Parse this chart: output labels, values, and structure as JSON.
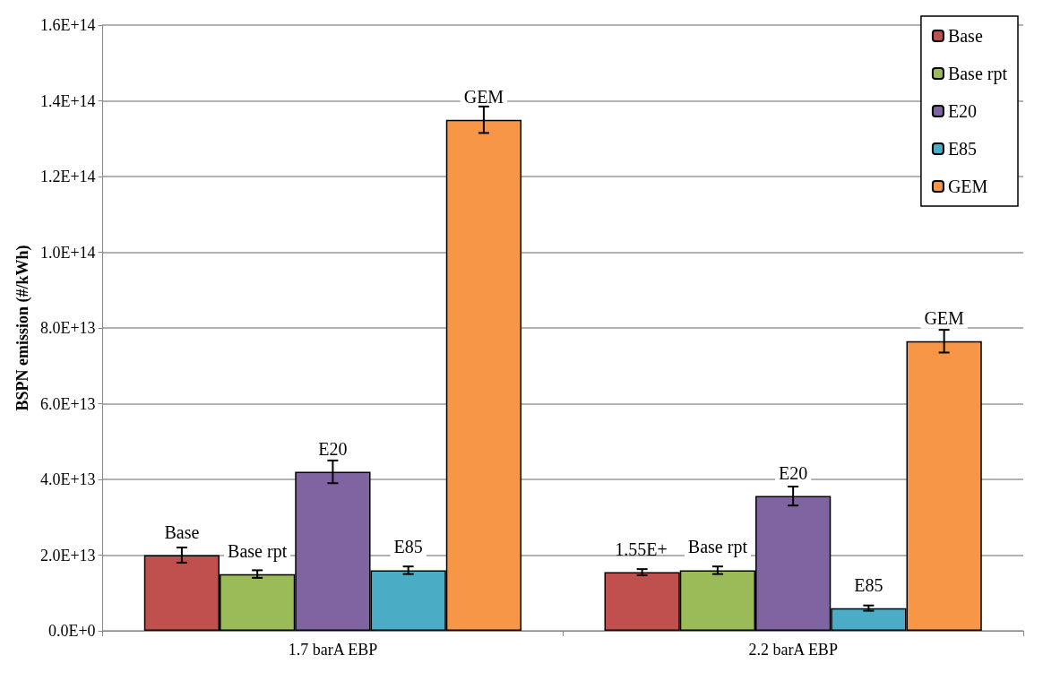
{
  "chart_data": {
    "type": "bar",
    "ylabel": "BSPN emission (#/kWh)",
    "categories": [
      "1.7 barA EBP",
      "2.2 barA EBP"
    ],
    "series": [
      {
        "name": "Base",
        "color": "#c0504d",
        "values": [
          20000000000000.0,
          15500000000000.0
        ],
        "errors": [
          2000000000000.0,
          800000000000.0
        ],
        "value_labels": [
          "Base",
          null
        ]
      },
      {
        "name": "Base rpt",
        "color": "#9bbb59",
        "values": [
          15000000000000.0,
          16000000000000.0
        ],
        "errors": [
          1000000000000.0,
          1000000000000.0
        ],
        "value_labels": [
          "Base rpt",
          "Base rpt"
        ]
      },
      {
        "name": "E20",
        "color": "#8064a2",
        "values": [
          42000000000000.0,
          35600000000000.0
        ],
        "errors": [
          3000000000000.0,
          2500000000000.0
        ],
        "value_labels": [
          "E20",
          "E20"
        ]
      },
      {
        "name": "E85",
        "color": "#4bacc6",
        "values": [
          16000000000000.0,
          6000000000000.0
        ],
        "errors": [
          1000000000000.0,
          700000000000.0
        ],
        "value_labels": [
          "E85",
          "E85"
        ]
      },
      {
        "name": "GEM",
        "color": "#f79646",
        "values": [
          135000000000000.0,
          76500000000000.0
        ],
        "errors": [
          3500000000000.0,
          3000000000000.0
        ],
        "value_labels": [
          "GEM",
          "GEM"
        ]
      }
    ],
    "ylim": [
      0,
      160000000000000.0
    ],
    "yticks": [
      {
        "value": 0,
        "label": "0.0E+0"
      },
      {
        "value": 20000000000000.0,
        "label": "2.0E+13"
      },
      {
        "value": 40000000000000.0,
        "label": "4.0E+13"
      },
      {
        "value": 60000000000000.0,
        "label": "6.0E+13"
      },
      {
        "value": 80000000000000.0,
        "label": "8.0E+13"
      },
      {
        "value": 100000000000000.0,
        "label": "1.0E+14"
      },
      {
        "value": 120000000000000.0,
        "label": "1.2E+14"
      },
      {
        "value": 140000000000000.0,
        "label": "1.4E+14"
      },
      {
        "value": 160000000000000.0,
        "label": "1.6E+14"
      }
    ],
    "annotations": [
      "1.55E+"
    ],
    "grid": "y",
    "legend": "top right"
  }
}
